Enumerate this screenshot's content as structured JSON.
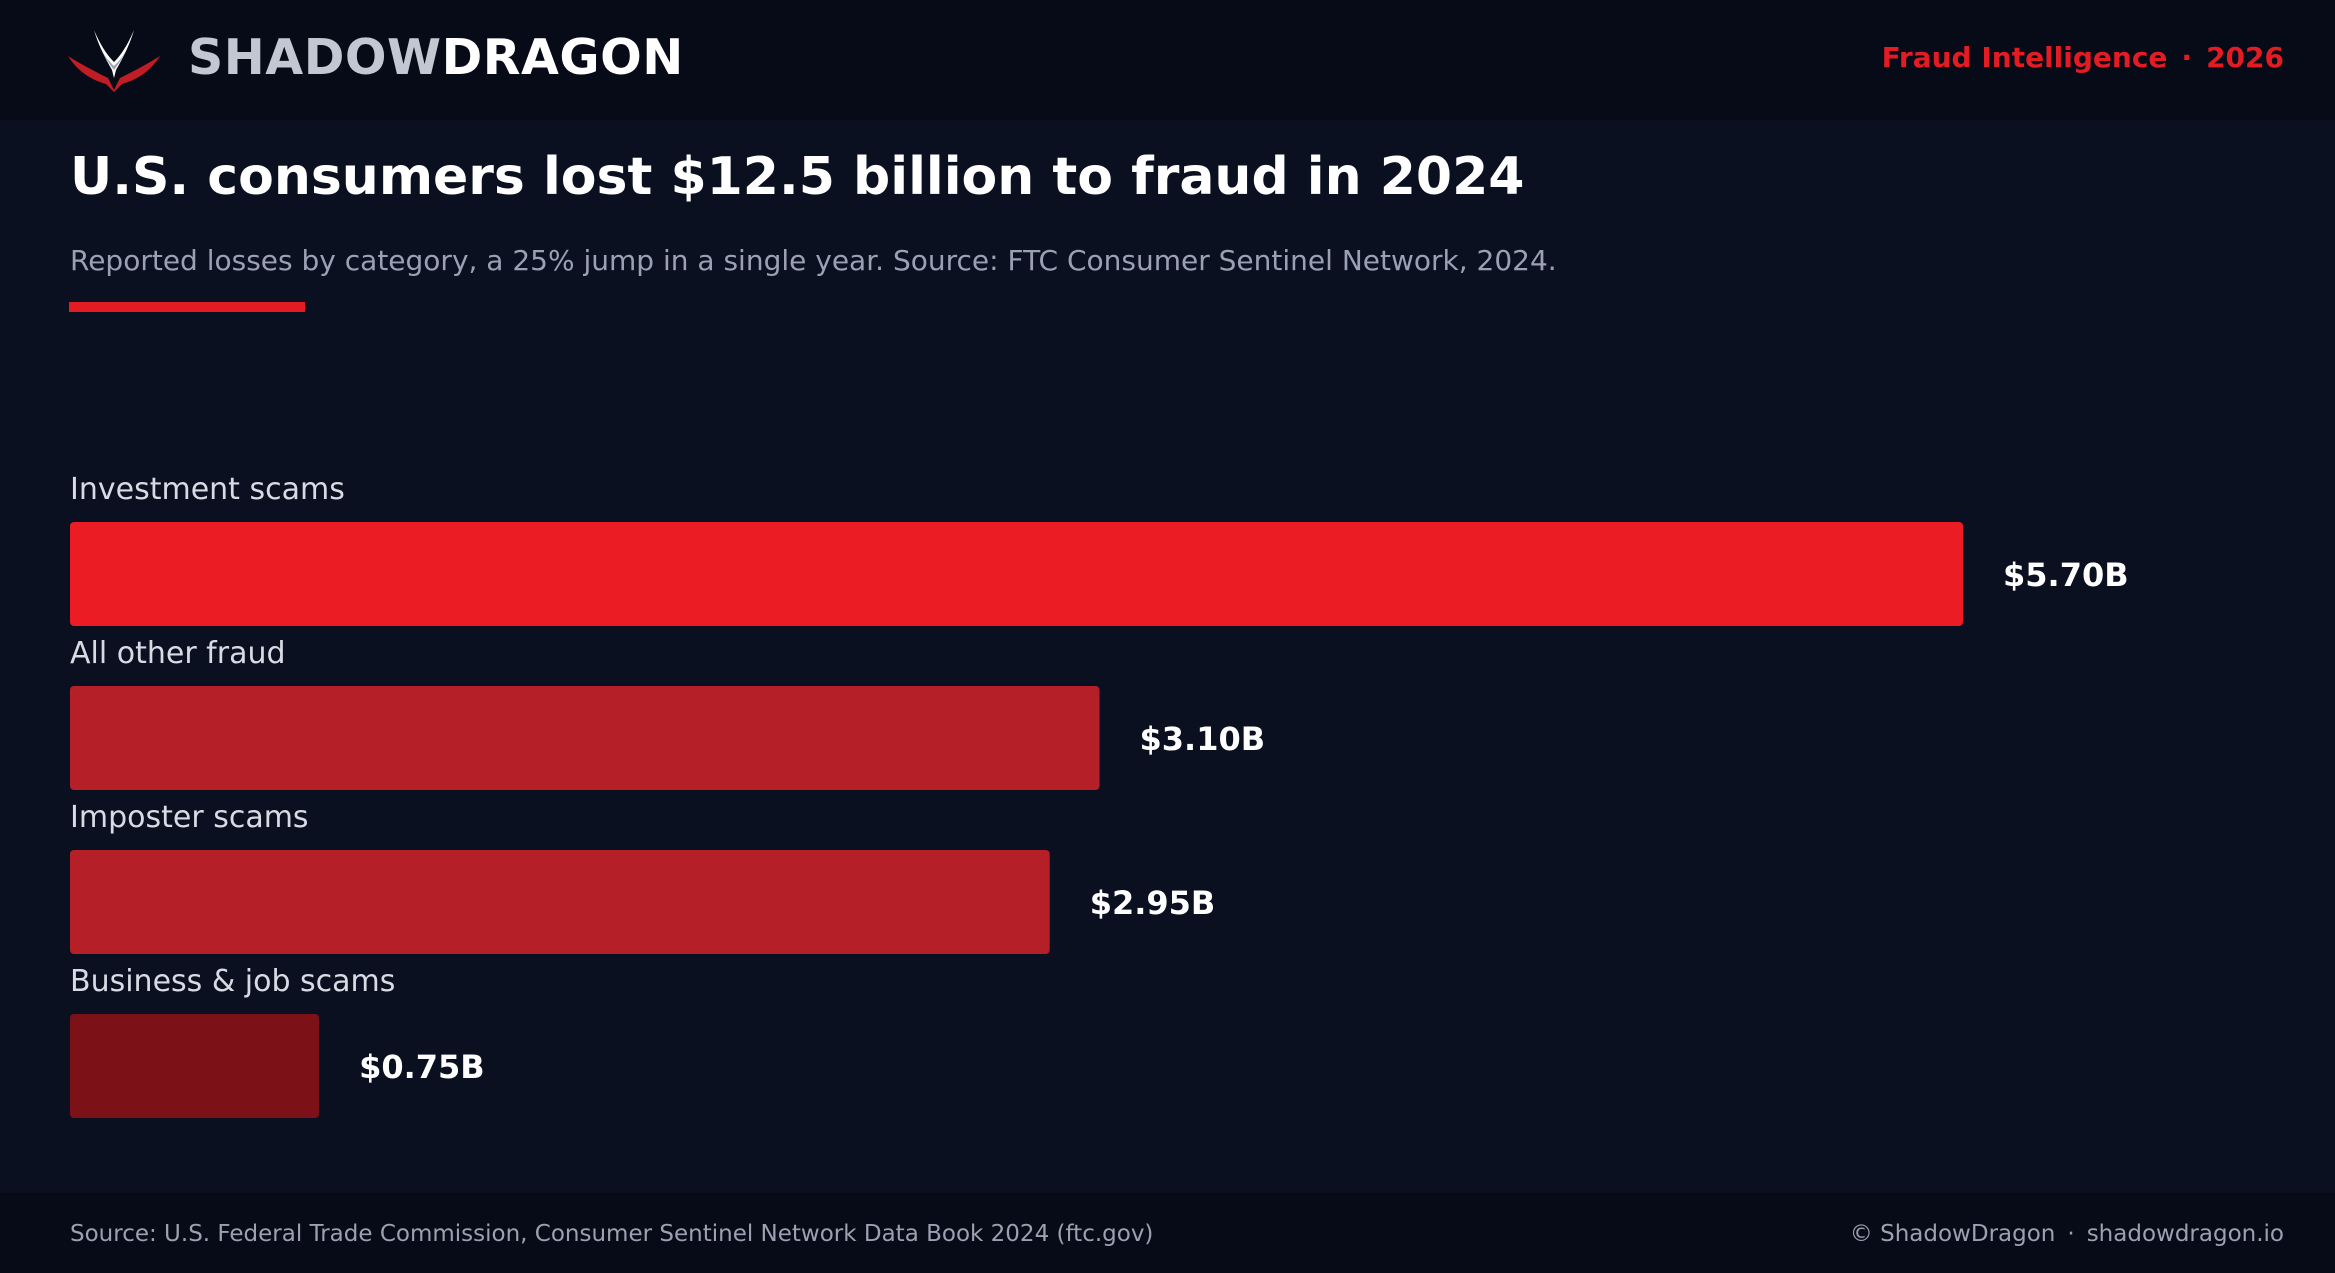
{
  "header": {
    "brand_light": "SHADOW",
    "brand_bold": "DRAGON",
    "tagline_topic": "Fraud Intelligence",
    "tagline_sep": "·",
    "tagline_year": "2026"
  },
  "headline": "U.S. consumers lost $12.5 billion to fraud in 2024",
  "subtitle": "Reported losses by category, a 25% jump in a single year. Source: FTC Consumer Sentinel Network, 2024.",
  "chart_data": {
    "type": "bar",
    "orientation": "horizontal",
    "title": "",
    "xlabel": "",
    "ylabel": "",
    "unit": "B",
    "xlim": [
      0,
      5.7
    ],
    "grid": false,
    "categories": [
      "Investment scams",
      "All other fraud",
      "Imposter scams",
      "Business & job scams"
    ],
    "values": [
      5.7,
      3.1,
      2.95,
      0.75
    ],
    "value_labels": [
      "$5.70B",
      "$3.10B",
      "$2.95B",
      "$0.75B"
    ],
    "colors": [
      "#ec1c24",
      "#b51f28",
      "#b51f28",
      "#7c1218"
    ]
  },
  "footer": {
    "source": "Source: U.S. Federal Trade Commission, Consumer Sentinel Network Data Book 2024 (ftc.gov)",
    "copyright": "© ShadowDragon",
    "sep": "·",
    "site": "shadowdragon.io"
  },
  "colors": {
    "background": "#0b1020",
    "header_background": "#070b17",
    "accent": "#e31c24",
    "muted_text": "#9ba0b2"
  },
  "icons": {
    "logo": "dragon-logo-icon"
  }
}
